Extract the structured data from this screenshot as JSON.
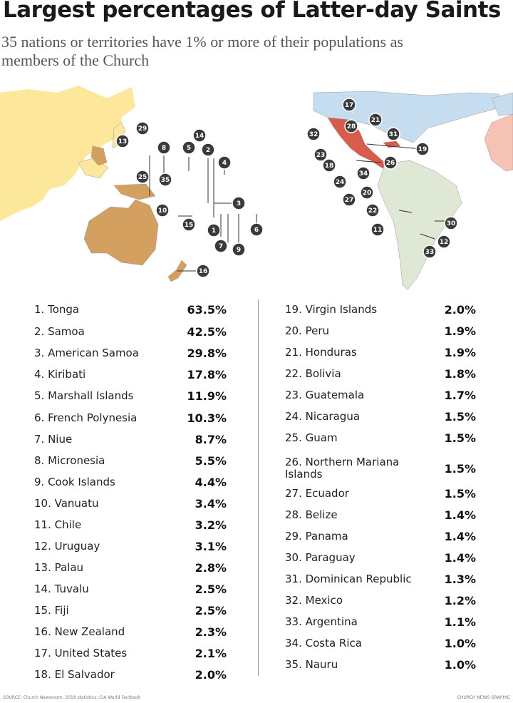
{
  "title": "Largest percentages of Latter-day Saints",
  "subtitle": "35 nations or territories have 1% or more of their populations as members of the Church",
  "map": {
    "colors": {
      "asia": "#fce79a",
      "oceania": "#d4a060",
      "north_america": "#c6dcef",
      "central_america": "#d95b4b",
      "south_america": "#dfe7d5",
      "africa": "#f5c2b4",
      "marker": "#3a3a3a"
    },
    "markers": {
      "pacific": [
        "13",
        "29",
        "8",
        "5",
        "14",
        "2",
        "4",
        "25",
        "35",
        "10",
        "15",
        "1",
        "7",
        "9",
        "6",
        "3",
        "16"
      ],
      "americas": [
        "17",
        "28",
        "21",
        "31",
        "32",
        "23",
        "18",
        "19",
        "24",
        "34",
        "27",
        "26",
        "20",
        "22",
        "11",
        "30",
        "12",
        "33"
      ]
    }
  },
  "countries_left": [
    {
      "label": "1. Tonga",
      "value": "63.5%"
    },
    {
      "label": "2. Samoa",
      "value": "42.5%"
    },
    {
      "label": "3. American Samoa",
      "value": "29.8%"
    },
    {
      "label": "4. Kiribati",
      "value": "17.8%"
    },
    {
      "label": "5. Marshall Islands",
      "value": "11.9%"
    },
    {
      "label": "6. French Polynesia",
      "value": "10.3%"
    },
    {
      "label": "7. Niue",
      "value": "8.7%"
    },
    {
      "label": "8. Micronesia",
      "value": "5.5%"
    },
    {
      "label": "9. Cook Islands",
      "value": "4.4%"
    },
    {
      "label": "10. Vanuatu",
      "value": "3.4%"
    },
    {
      "label": "11. Chile",
      "value": "3.2%"
    },
    {
      "label": "12. Uruguay",
      "value": "3.1%"
    },
    {
      "label": "13. Palau",
      "value": "2.8%"
    },
    {
      "label": "14. Tuvalu",
      "value": "2.5%"
    },
    {
      "label": "15. Fiji",
      "value": "2.5%"
    },
    {
      "label": "16. New Zealand",
      "value": "2.3%"
    },
    {
      "label": "17. United States",
      "value": "2.1%"
    },
    {
      "label": "18. El Salvador",
      "value": "2.0%"
    }
  ],
  "countries_right": [
    {
      "label": "19. Virgin Islands",
      "value": "2.0%"
    },
    {
      "label": "20. Peru",
      "value": "1.9%"
    },
    {
      "label": "21. Honduras",
      "value": "1.9%"
    },
    {
      "label": "22. Bolivia",
      "value": "1.8%"
    },
    {
      "label": "23. Guatemala",
      "value": "1.7%"
    },
    {
      "label": "24. Nicaragua",
      "value": "1.5%"
    },
    {
      "label": "25. Guam",
      "value": "1.5%"
    },
    {
      "label": "26. Northern Mariana Islands",
      "value": "1.5%"
    },
    {
      "label": "27. Ecuador",
      "value": "1.5%"
    },
    {
      "label": "28. Belize",
      "value": "1.4%"
    },
    {
      "label": "29. Panama",
      "value": "1.4%"
    },
    {
      "label": "30. Paraguay",
      "value": "1.4%"
    },
    {
      "label": "31. Dominican Republic",
      "value": "1.3%"
    },
    {
      "label": "32. Mexico",
      "value": "1.2%"
    },
    {
      "label": "33. Argentina",
      "value": "1.1%"
    },
    {
      "label": "34. Costa Rica",
      "value": "1.0%"
    },
    {
      "label": "35. Nauru",
      "value": "1.0%"
    }
  ],
  "footer": {
    "source": "SOURCE: Church Newsroom, 2018 statistics; CIA World Factbook",
    "credit": "CHURCH NEWS GRAPHIC"
  }
}
